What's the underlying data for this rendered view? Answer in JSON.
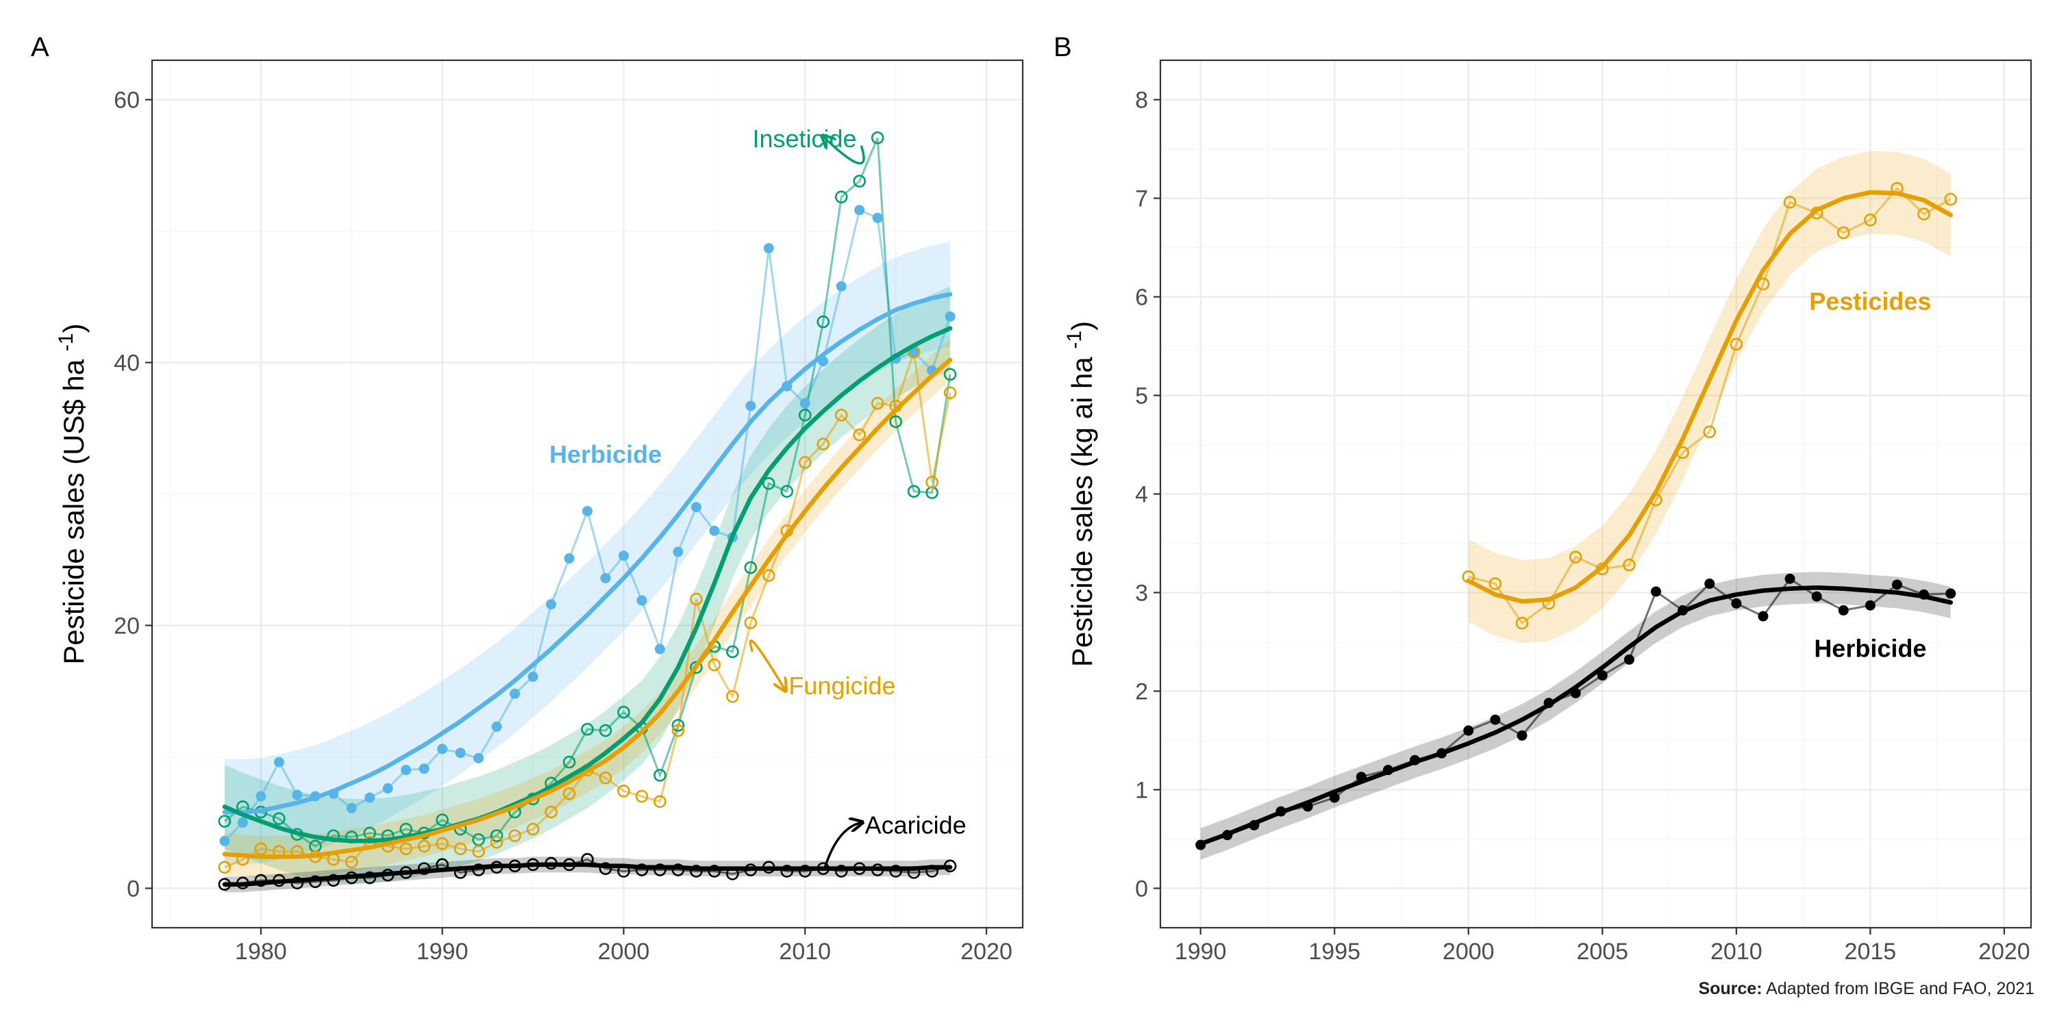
{
  "figure": {
    "source_label": "Source:",
    "source_text": " Adapted from IBGE and FAO, 2021"
  },
  "chart_data": [
    {
      "panel_label": "A",
      "type": "line",
      "ylabel": "Pesticide sales (US$ ha",
      "ylabel_sup": "-1",
      "ylabel_end": ")",
      "xlim": [
        1974,
        2022
      ],
      "ylim": [
        -3,
        63
      ],
      "xticks": [
        1980,
        1990,
        2000,
        2010,
        2020
      ],
      "yticks": [
        0,
        20,
        40,
        60
      ],
      "grid": true,
      "x": [
        1978,
        1979,
        1980,
        1981,
        1982,
        1983,
        1984,
        1985,
        1986,
        1987,
        1988,
        1989,
        1990,
        1991,
        1992,
        1993,
        1994,
        1995,
        1996,
        1997,
        1998,
        1999,
        2000,
        2001,
        2002,
        2003,
        2004,
        2005,
        2006,
        2007,
        2008,
        2009,
        2010,
        2011,
        2012,
        2013,
        2014,
        2015,
        2016,
        2017,
        2018
      ],
      "series": [
        {
          "name": "Herbicide",
          "color": "#56B4E9",
          "marker": "filled",
          "values": [
            3.6,
            5.0,
            7.0,
            9.6,
            7.1,
            7.0,
            7.2,
            6.1,
            6.9,
            7.6,
            9.0,
            9.1,
            10.6,
            10.3,
            9.9,
            12.3,
            14.8,
            16.1,
            21.6,
            25.1,
            28.7,
            23.6,
            25.3,
            21.9,
            18.2,
            25.6,
            29.0,
            27.2,
            26.7,
            36.7,
            48.7,
            38.2,
            36.9,
            40.1,
            45.8,
            51.6,
            51.0,
            40.3,
            40.8,
            39.4,
            43.5
          ],
          "trend": [
            5.8,
            5.8,
            5.9,
            6.2,
            6.5,
            6.9,
            7.4,
            8.0,
            8.6,
            9.3,
            10.1,
            10.9,
            11.8,
            12.7,
            13.7,
            14.7,
            15.8,
            17.0,
            18.2,
            19.5,
            20.8,
            22.2,
            23.6,
            25.1,
            26.7,
            28.4,
            30.2,
            32.0,
            33.8,
            35.5,
            37.0,
            38.3,
            39.5,
            40.6,
            41.6,
            42.5,
            43.3,
            44.0,
            44.5,
            44.9,
            45.2
          ],
          "band": 4
        },
        {
          "name": "Inseticide",
          "color": "#009E73",
          "marker": "open",
          "values": [
            5.1,
            6.2,
            5.8,
            5.3,
            4.1,
            3.2,
            4.0,
            3.9,
            4.2,
            4.0,
            4.5,
            4.2,
            5.2,
            4.5,
            3.7,
            4.0,
            5.8,
            6.8,
            8.0,
            9.6,
            12.1,
            12.0,
            13.4,
            12.2,
            8.6,
            12.4,
            16.8,
            18.4,
            18.0,
            24.4,
            30.8,
            30.2,
            36.0,
            43.1,
            52.6,
            53.8,
            57.1,
            35.5,
            30.2,
            30.1,
            39.1
          ],
          "trend": [
            6.2,
            5.6,
            5.1,
            4.6,
            4.2,
            3.9,
            3.7,
            3.6,
            3.6,
            3.7,
            3.9,
            4.2,
            4.5,
            4.9,
            5.3,
            5.8,
            6.4,
            7.0,
            7.7,
            8.5,
            9.3,
            10.3,
            11.4,
            12.6,
            14.4,
            16.8,
            19.8,
            23.2,
            26.8,
            29.7,
            31.8,
            33.5,
            35.0,
            36.3,
            37.5,
            38.6,
            39.6,
            40.5,
            41.3,
            42.0,
            42.6
          ],
          "band": 3.2
        },
        {
          "name": "Fungicide",
          "color": "#E69F00",
          "marker": "open",
          "values": [
            1.6,
            2.2,
            3.0,
            2.8,
            2.8,
            2.4,
            2.2,
            2.0,
            3.5,
            3.2,
            3.0,
            3.2,
            3.4,
            3.0,
            2.8,
            3.5,
            4.0,
            4.5,
            5.8,
            7.2,
            9.0,
            8.4,
            7.4,
            7.0,
            6.6,
            12.0,
            22.0,
            17.0,
            14.6,
            20.2,
            23.8,
            27.2,
            32.4,
            33.8,
            36.0,
            34.5,
            36.9,
            36.7,
            40.8,
            30.9,
            37.7
          ],
          "trend": [
            2.6,
            2.5,
            2.4,
            2.4,
            2.4,
            2.5,
            2.7,
            2.9,
            3.1,
            3.4,
            3.7,
            4.0,
            4.4,
            4.8,
            5.2,
            5.7,
            6.2,
            6.8,
            7.4,
            8.1,
            8.9,
            9.7,
            10.7,
            11.9,
            13.3,
            15.0,
            16.9,
            18.9,
            21.0,
            23.0,
            25.0,
            26.9,
            28.7,
            30.4,
            32.0,
            33.5,
            35.0,
            36.4,
            37.7,
            39.0,
            40.2
          ],
          "band": 1.6
        },
        {
          "name": "Acaricide",
          "color": "#000000",
          "marker": "open",
          "values": [
            0.3,
            0.4,
            0.6,
            0.6,
            0.4,
            0.5,
            0.6,
            0.8,
            0.8,
            1.0,
            1.2,
            1.5,
            1.8,
            1.2,
            1.4,
            1.6,
            1.7,
            1.8,
            1.9,
            1.8,
            2.2,
            1.5,
            1.3,
            1.4,
            1.4,
            1.4,
            1.3,
            1.3,
            1.1,
            1.4,
            1.6,
            1.3,
            1.3,
            1.5,
            1.3,
            1.5,
            1.4,
            1.3,
            1.2,
            1.3,
            1.7
          ],
          "trend": [
            0.3,
            0.3,
            0.4,
            0.5,
            0.6,
            0.7,
            0.8,
            0.9,
            1.0,
            1.1,
            1.2,
            1.3,
            1.4,
            1.5,
            1.6,
            1.7,
            1.7,
            1.8,
            1.8,
            1.8,
            1.8,
            1.7,
            1.7,
            1.6,
            1.6,
            1.6,
            1.5,
            1.5,
            1.5,
            1.5,
            1.5,
            1.5,
            1.5,
            1.5,
            1.5,
            1.5,
            1.5,
            1.5,
            1.5,
            1.6,
            1.6
          ],
          "band": 0.6
        }
      ],
      "annotations": [
        {
          "series": "Herbicide",
          "text": "Herbicide",
          "x": 1999.0,
          "y": 33.0,
          "color": "#56B4E9",
          "bold": true,
          "anchor": "middle"
        },
        {
          "series": "Inseticide",
          "text": "Inseticide",
          "x": 2007.1,
          "y": 57.0,
          "color": "#009E73",
          "bold": false,
          "anchor": "start",
          "arrow": [
            2013.1,
            56.5,
            2011.0,
            57.2,
            0.7,
            -3
          ]
        },
        {
          "series": "Fungicide",
          "text": "Fungicide",
          "x": 2009.1,
          "y": 15.4,
          "color": "#E69F00",
          "bold": false,
          "anchor": "start",
          "arrow": [
            2007.1,
            18.0,
            2008.9,
            15.1,
            -0.6,
            2.6
          ]
        },
        {
          "series": "Acaricide",
          "text": "Acaricide",
          "x": 2013.3,
          "y": 4.8,
          "color": "#000000",
          "bold": false,
          "anchor": "start",
          "arrow": [
            2011.1,
            1.6,
            2013.1,
            5.0,
            0.7,
            3
          ]
        }
      ]
    },
    {
      "panel_label": "B",
      "type": "line",
      "ylabel": "Pesticide sales (kg ai ha",
      "ylabel_sup": "-1",
      "ylabel_end": ")",
      "xlim": [
        1988.5,
        2021
      ],
      "ylim": [
        -0.4,
        8.4
      ],
      "xticks": [
        1990,
        1995,
        2000,
        2005,
        2010,
        2015,
        2020
      ],
      "yticks": [
        0,
        1,
        2,
        3,
        4,
        5,
        6,
        7,
        8
      ],
      "grid": true,
      "series": [
        {
          "name": "Pesticides",
          "color": "#E69F00",
          "marker": "open",
          "x": [
            2000,
            2001,
            2002,
            2003,
            2004,
            2005,
            2006,
            2007,
            2008,
            2009,
            2010,
            2011,
            2012,
            2013,
            2014,
            2015,
            2016,
            2017,
            2018
          ],
          "values": [
            3.16,
            3.09,
            2.69,
            2.89,
            3.36,
            3.24,
            3.28,
            3.94,
            4.42,
            4.63,
            5.52,
            6.13,
            6.96,
            6.85,
            6.65,
            6.78,
            7.1,
            6.84,
            6.99
          ],
          "trend": [
            3.12,
            2.98,
            2.91,
            2.93,
            3.05,
            3.26,
            3.58,
            4.02,
            4.56,
            5.16,
            5.76,
            6.27,
            6.64,
            6.88,
            7.0,
            7.06,
            7.05,
            6.98,
            6.83
          ],
          "band": 0.42
        },
        {
          "name": "Herbicide",
          "color": "#000000",
          "marker": "filled",
          "x": [
            1990,
            1991,
            1992,
            1993,
            1994,
            1995,
            1996,
            1997,
            1998,
            1999,
            2000,
            2001,
            2002,
            2003,
            2004,
            2005,
            2006,
            2007,
            2008,
            2009,
            2010,
            2011,
            2012,
            2013,
            2014,
            2015,
            2016,
            2017,
            2018
          ],
          "values": [
            0.44,
            0.54,
            0.64,
            0.78,
            0.83,
            0.92,
            1.13,
            1.2,
            1.3,
            1.37,
            1.6,
            1.71,
            1.55,
            1.88,
            1.98,
            2.16,
            2.32,
            3.01,
            2.82,
            3.09,
            2.89,
            2.76,
            3.14,
            2.96,
            2.82,
            2.87,
            3.08,
            2.98,
            2.99
          ],
          "trend": [
            0.45,
            0.55,
            0.66,
            0.77,
            0.87,
            0.98,
            1.08,
            1.18,
            1.28,
            1.37,
            1.47,
            1.58,
            1.71,
            1.86,
            2.04,
            2.24,
            2.45,
            2.65,
            2.81,
            2.92,
            2.98,
            3.02,
            3.04,
            3.05,
            3.04,
            3.02,
            3.0,
            2.96,
            2.9
          ],
          "band": 0.16
        }
      ],
      "annotations": [
        {
          "series": "Pesticides",
          "text": "Pesticides",
          "x": 2015.0,
          "y": 5.95,
          "color": "#E69F00",
          "bold": true,
          "anchor": "middle"
        },
        {
          "series": "Herbicide",
          "text": "Herbicide",
          "x": 2015.0,
          "y": 2.43,
          "color": "#000000",
          "bold": true,
          "anchor": "middle"
        }
      ]
    }
  ]
}
